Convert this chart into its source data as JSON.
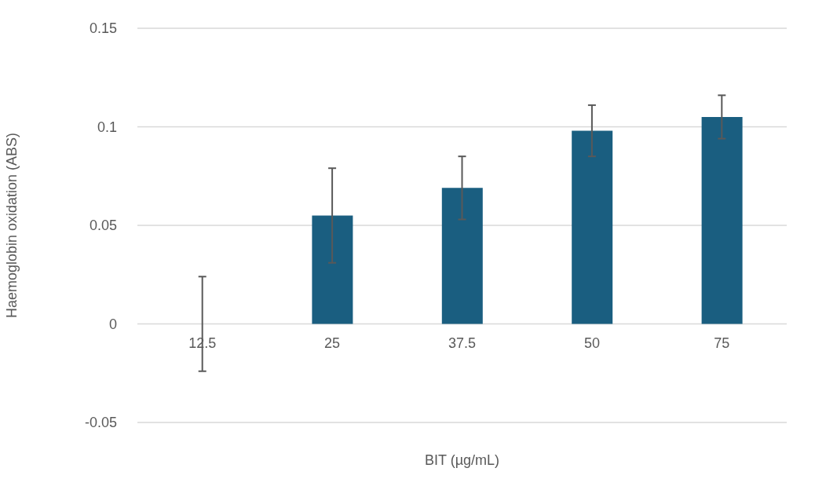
{
  "chart_data": {
    "type": "bar",
    "xlabel": "BIT (µg/mL)",
    "ylabel": "Haemoglobin  oxidation (ABS)",
    "categories": [
      "12.5",
      "25",
      "37.5",
      "50",
      "75"
    ],
    "values": [
      0,
      0.055,
      0.069,
      0.098,
      0.105
    ],
    "errors": [
      0.024,
      0.024,
      0.016,
      0.013,
      0.011
    ],
    "color": "#1a5e80",
    "ylim": [
      -0.05,
      0.15
    ],
    "yticks": [
      {
        "value": -0.05,
        "label": "-0.05"
      },
      0,
      0.05,
      {
        "value": 0.1,
        "label": "0.1"
      },
      0.15
    ],
    "grid": "y"
  }
}
